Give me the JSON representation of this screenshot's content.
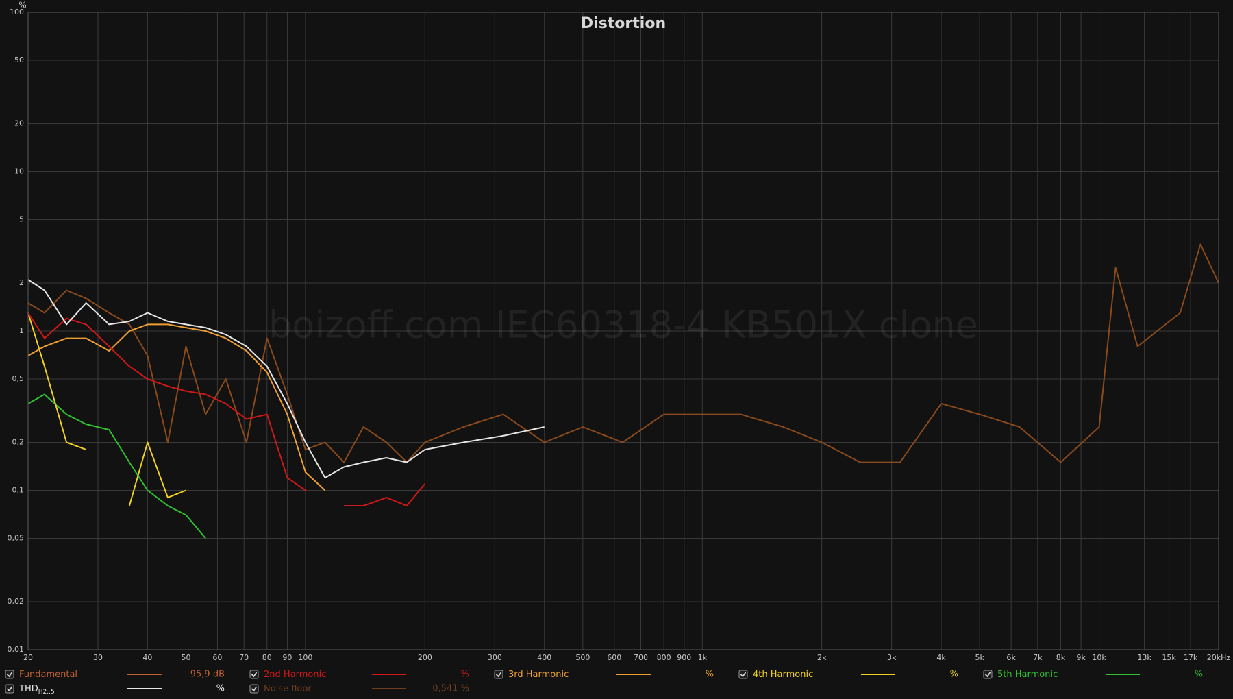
{
  "chart_data": {
    "type": "line",
    "title": "Distortion",
    "watermark": "boizoff.com IEC60318-4 KB501X clone",
    "y_unit": "%",
    "log_x": true,
    "log_y": true,
    "grid": true,
    "xlim": [
      20,
      20000
    ],
    "ylim": [
      0.01,
      100
    ],
    "xticks": [
      20,
      30,
      40,
      50,
      60,
      70,
      80,
      90,
      100,
      200,
      300,
      400,
      500,
      600,
      700,
      800,
      900,
      {
        "value": 1000,
        "label": "1k"
      },
      {
        "value": 2000,
        "label": "2k"
      },
      {
        "value": 3000,
        "label": "3k"
      },
      {
        "value": 4000,
        "label": "4k"
      },
      {
        "value": 5000,
        "label": "5k"
      },
      {
        "value": 6000,
        "label": "6k"
      },
      {
        "value": 7000,
        "label": "7k"
      },
      {
        "value": 8000,
        "label": "8k"
      },
      {
        "value": 9000,
        "label": "9k"
      },
      {
        "value": 10000,
        "label": "10k"
      },
      {
        "value": 13000,
        "label": "13k"
      },
      {
        "value": 15000,
        "label": "15k"
      },
      {
        "value": 17000,
        "label": "17k"
      },
      {
        "value": 20000,
        "label": "20kHz"
      }
    ],
    "yticks": [
      100,
      50,
      20,
      10,
      5,
      2,
      1,
      {
        "value": 0.5,
        "label": "0,5"
      },
      {
        "value": 0.2,
        "label": "0,2"
      },
      {
        "value": 0.1,
        "label": "0,1"
      },
      {
        "value": 0.05,
        "label": "0,05"
      },
      {
        "value": 0.02,
        "label": "0,02"
      },
      {
        "value": 0.01,
        "label": "0,01"
      }
    ],
    "x": [
      20,
      22,
      25,
      28,
      32,
      36,
      40,
      45,
      50,
      56,
      63,
      71,
      80,
      90,
      100,
      112,
      125,
      140,
      160,
      180,
      200,
      250,
      315,
      400,
      500,
      630,
      800,
      1000,
      1250,
      1600,
      2000,
      2500,
      3150,
      4000,
      5000,
      6300,
      8000,
      10000,
      11000,
      12500,
      16000,
      18000,
      20000
    ],
    "series": [
      {
        "name": "THD",
        "color": "#e6e6e6",
        "values": [
          2.1,
          1.8,
          1.1,
          1.5,
          1.1,
          1.15,
          1.3,
          1.15,
          1.1,
          1.05,
          0.95,
          0.8,
          0.6,
          0.35,
          0.2,
          0.12,
          0.14,
          0.15,
          0.16,
          0.15,
          0.18,
          0.2,
          0.22,
          0.25,
          null,
          null,
          null,
          null,
          null,
          null,
          null,
          null,
          null,
          null,
          null,
          null,
          null,
          null,
          null,
          null,
          null,
          null,
          null
        ]
      },
      {
        "name": "2nd Harmonic",
        "color": "#d01818",
        "values": [
          1.3,
          0.9,
          1.2,
          1.1,
          0.8,
          0.6,
          0.5,
          0.45,
          0.42,
          0.4,
          0.35,
          0.28,
          0.3,
          0.12,
          0.1,
          null,
          0.08,
          0.08,
          0.09,
          0.08,
          0.11,
          null,
          null,
          null,
          null,
          null,
          null,
          null,
          null,
          null,
          null,
          null,
          null,
          null,
          null,
          null,
          null,
          null,
          null,
          null,
          null,
          null,
          null
        ]
      },
      {
        "name": "3rd Harmonic",
        "color": "#f0a030",
        "values": [
          0.7,
          0.8,
          0.9,
          0.9,
          0.75,
          1.0,
          1.1,
          1.1,
          1.05,
          1.0,
          0.9,
          0.75,
          0.55,
          0.3,
          0.13,
          0.1,
          null,
          null,
          null,
          null,
          null,
          null,
          null,
          null,
          null,
          null,
          null,
          null,
          null,
          null,
          null,
          null,
          null,
          null,
          null,
          null,
          null,
          null,
          null,
          null,
          null,
          null,
          null
        ]
      },
      {
        "name": "4th Harmonic",
        "color": "#f0d020",
        "values": [
          1.3,
          0.6,
          0.2,
          0.18,
          null,
          0.08,
          0.2,
          0.09,
          0.1,
          null,
          null,
          null,
          null,
          null,
          null,
          null,
          null,
          null,
          null,
          null,
          null,
          null,
          null,
          null,
          null,
          null,
          null,
          null,
          null,
          null,
          null,
          null,
          null,
          null,
          null,
          null,
          null,
          null,
          null,
          null,
          null,
          null,
          null
        ]
      },
      {
        "name": "5th Harmonic",
        "color": "#30c030",
        "values": [
          0.35,
          0.4,
          0.3,
          0.26,
          0.24,
          0.15,
          0.1,
          0.08,
          0.07,
          0.05,
          null,
          null,
          null,
          null,
          null,
          null,
          null,
          null,
          null,
          null,
          null,
          null,
          null,
          null,
          null,
          null,
          null,
          null,
          null,
          null,
          null,
          null,
          null,
          null,
          null,
          null,
          null,
          null,
          null,
          null,
          null,
          null,
          null
        ]
      },
      {
        "name": "Noise floor",
        "color": "#8b4a1c",
        "values": [
          1.5,
          1.3,
          1.8,
          1.6,
          1.3,
          1.1,
          0.7,
          0.2,
          0.8,
          0.3,
          0.5,
          0.2,
          0.9,
          0.4,
          0.18,
          0.2,
          0.15,
          0.25,
          0.2,
          0.15,
          0.2,
          0.25,
          0.3,
          0.2,
          0.25,
          0.2,
          0.3,
          0.3,
          0.3,
          0.25,
          0.2,
          0.15,
          0.15,
          0.35,
          0.3,
          0.25,
          0.15,
          0.25,
          2.5,
          0.8,
          1.3,
          3.5,
          2.0
        ]
      }
    ],
    "legend": [
      {
        "name": "Fundamental",
        "color": "#c06030",
        "readout": "95,9 dB"
      },
      {
        "name": "2nd Harmonic",
        "color": "#d01818",
        "readout": "%"
      },
      {
        "name": "3rd Harmonic",
        "color": "#f0a030",
        "readout": "%"
      },
      {
        "name": "4th Harmonic",
        "color": "#f0d020",
        "readout": "%"
      },
      {
        "name": "5th Harmonic",
        "color": "#30c030",
        "readout": "%"
      },
      {
        "name": "THD",
        "name_sub": "H2..5",
        "color": "#e6e6e6",
        "readout": "%"
      },
      {
        "name": "Noise floor",
        "color": "#6e3e1e",
        "readout": "0,541 %"
      }
    ]
  }
}
